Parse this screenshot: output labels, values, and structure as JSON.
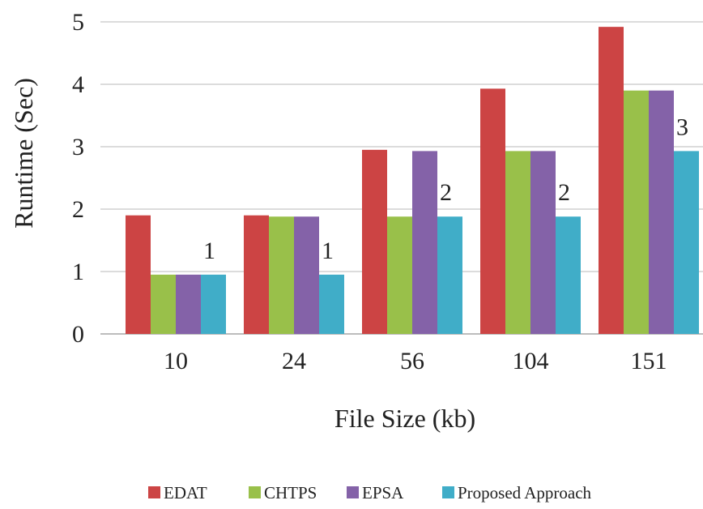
{
  "chart_data": {
    "type": "bar",
    "title": "",
    "xlabel": "File Size (kb)",
    "ylabel": "Runtime (Sec)",
    "ylim": [
      0,
      5
    ],
    "yticks": [
      "0",
      "1",
      "2",
      "3",
      "4",
      "5"
    ],
    "categories": [
      "10",
      "24",
      "56",
      "104",
      "151"
    ],
    "grid": true,
    "legend_position": "bottom",
    "series": [
      {
        "name": "EDAT",
        "color": "#cc4444",
        "values": [
          1.9,
          1.9,
          2.95,
          3.93,
          4.92
        ]
      },
      {
        "name": "CHTPS",
        "color": "#99c04a",
        "values": [
          0.95,
          1.88,
          1.88,
          2.93,
          3.9
        ]
      },
      {
        "name": "EPSA",
        "color": "#8462a8",
        "values": [
          0.95,
          1.88,
          2.93,
          2.93,
          3.9
        ]
      },
      {
        "name": "Proposed Approach",
        "color": "#40adc8",
        "values": [
          0.95,
          0.95,
          1.88,
          1.88,
          2.93
        ]
      }
    ],
    "data_labels": [
      {
        "category": "10",
        "text": "1"
      },
      {
        "category": "24",
        "text": "1"
      },
      {
        "category": "56",
        "text": "2"
      },
      {
        "category": "104",
        "text": "2"
      },
      {
        "category": "151",
        "text": "3"
      }
    ]
  }
}
